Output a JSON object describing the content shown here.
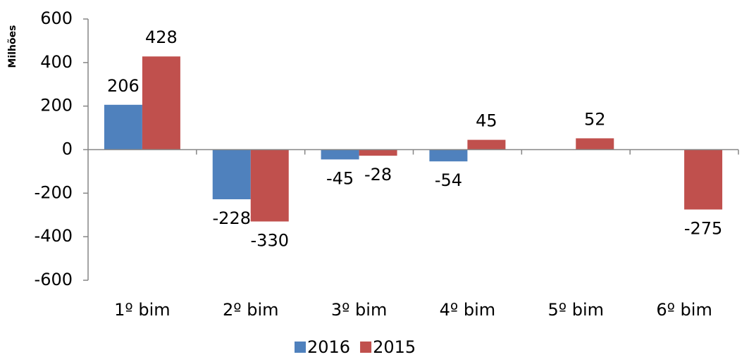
{
  "chart_data": {
    "type": "bar",
    "y_label": "Milhões",
    "categories": [
      "1º bim",
      "2º bim",
      "3º bim",
      "4º bim",
      "5º bim",
      "6º bim"
    ],
    "series": [
      {
        "name": "2016",
        "color": "#4f81bd",
        "values": [
          206,
          -228,
          -45,
          -54,
          null,
          null
        ]
      },
      {
        "name": "2015",
        "color": "#c0504d",
        "values": [
          428,
          -330,
          -28,
          45,
          52,
          -275
        ]
      }
    ],
    "ylim": [
      -600,
      600
    ],
    "yticks": [
      -600,
      -400,
      -200,
      0,
      200,
      400,
      600
    ],
    "legend": "bottom"
  }
}
